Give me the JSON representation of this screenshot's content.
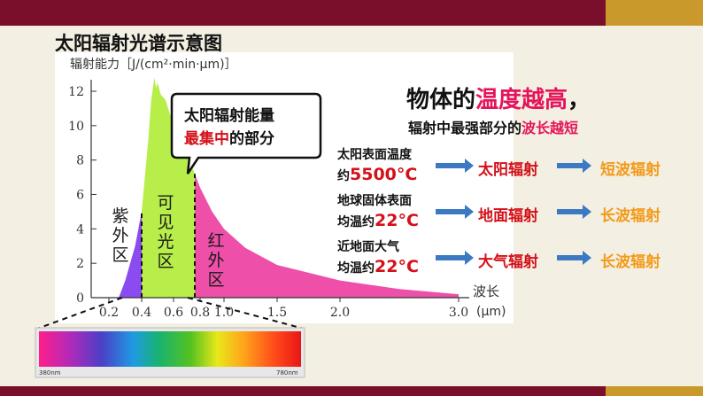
{
  "title": "太阳辐射光谱示意图",
  "chart_data": {
    "type": "area",
    "ylabel": "辐射能力［J/(cm²·min·μm)］",
    "xlabel": "波长",
    "xunit": "(μm)",
    "yticks": [
      "0",
      "2",
      "4",
      "6",
      "8",
      "10",
      "12"
    ],
    "xticks": [
      "0.2",
      "0.4",
      "0.6",
      "0.8",
      "1.0",
      "1.5",
      "2.0",
      "3.0"
    ],
    "xlim": [
      0.2,
      3.0
    ],
    "ylim": [
      0,
      13
    ],
    "regions": [
      {
        "label": [
          "紫",
          "外",
          "区"
        ],
        "color": "#8a4cf0",
        "from": 0.2,
        "to": 0.4
      },
      {
        "label": [
          "可",
          "见",
          "光",
          "区"
        ],
        "color": "#b7ee4a",
        "from": 0.4,
        "to": 0.76
      },
      {
        "label": [
          "红",
          "外",
          "区"
        ],
        "color": "#ee4fa9",
        "from": 0.76,
        "to": 3.0
      }
    ],
    "curve": [
      [
        0.26,
        0
      ],
      [
        0.3,
        1.0
      ],
      [
        0.33,
        2.0
      ],
      [
        0.36,
        3.0
      ],
      [
        0.38,
        4.0
      ],
      [
        0.4,
        5.0
      ],
      [
        0.42,
        7.0
      ],
      [
        0.44,
        9.0
      ],
      [
        0.46,
        11.5
      ],
      [
        0.48,
        12.8
      ],
      [
        0.49,
        12.2
      ],
      [
        0.5,
        12.5
      ],
      [
        0.52,
        11.8
      ],
      [
        0.55,
        11.5
      ],
      [
        0.58,
        10.6
      ],
      [
        0.62,
        10.4
      ],
      [
        0.66,
        9.2
      ],
      [
        0.7,
        8.4
      ],
      [
        0.76,
        7.2
      ],
      [
        0.8,
        6.4
      ],
      [
        0.9,
        5.0
      ],
      [
        1.0,
        4.0
      ],
      [
        1.2,
        2.9
      ],
      [
        1.5,
        1.9
      ],
      [
        2.0,
        1.0
      ],
      [
        2.5,
        0.5
      ],
      [
        3.0,
        0.2
      ]
    ]
  },
  "callout": {
    "line1": "太阳辐射能量",
    "line2_red": "最集中",
    "line2_rest": "的部分"
  },
  "spectrum": {
    "left_label": "380nm",
    "right_label": "780nm"
  },
  "headline": {
    "prefix": "物体的",
    "hot": "温度越高",
    "suffix": "，"
  },
  "subhead": {
    "prefix": "辐射中最强部分的",
    "hot": "波长越短"
  },
  "rows": [
    {
      "line1": "太阳表面温度",
      "line2_prefix": "约",
      "value": "5500°C",
      "radiation": "太阳辐射",
      "wave": "短波辐射"
    },
    {
      "line1": "地球固体表面",
      "line2_prefix": "均温约",
      "value": "22°C",
      "radiation": "地面辐射",
      "wave": "长波辐射"
    },
    {
      "line1": "近地面大气",
      "line2_prefix": "均温约",
      "value": "22°C",
      "radiation": "大气辐射",
      "wave": "长波辐射"
    }
  ],
  "colors": {
    "bar": "#7a0f2c",
    "accent": "#c99a2b",
    "arrow": "#3b7ac2",
    "hot": "#e4145a",
    "orange": "#f39a1a"
  }
}
